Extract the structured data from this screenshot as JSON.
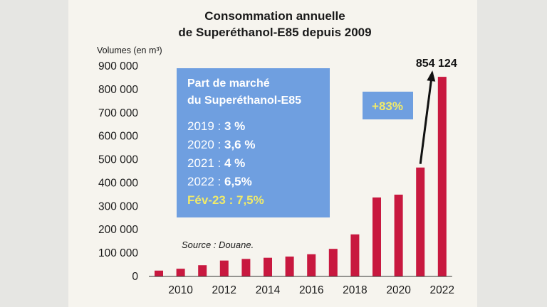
{
  "chart_data": {
    "type": "bar",
    "title": [
      "Consommation annuelle",
      "de Superéthanol-E85 depuis 2009"
    ],
    "ylabel": "Volumes (en m³)",
    "x": [
      2009,
      2010,
      2011,
      2012,
      2013,
      2014,
      2015,
      2016,
      2017,
      2018,
      2019,
      2020,
      2021,
      2022
    ],
    "values": [
      25000,
      33000,
      48000,
      68000,
      75000,
      80000,
      85000,
      95000,
      118000,
      180000,
      338000,
      350000,
      466000,
      854124
    ],
    "xticks": [
      "2010",
      "2012",
      "2014",
      "2016",
      "2018",
      "2020",
      "2022"
    ],
    "yticks": [
      "0",
      "100 000",
      "200 000",
      "300 000",
      "400 000",
      "500 000",
      "600 000",
      "700 000",
      "800 000",
      "900 000"
    ],
    "ylim": [
      0,
      900000
    ],
    "grid": false,
    "bar_color": "#c8183f",
    "last_value_label": "854 124",
    "growth_label": "+83%",
    "source": "Source : Douane.",
    "inset": {
      "title": [
        "Part de marché",
        "du Superéthanol-E85"
      ],
      "rows": [
        {
          "label": "2019 : ",
          "value": "3 %"
        },
        {
          "label": "2020 : ",
          "value": "3,6 %"
        },
        {
          "label": "2021 : ",
          "value": "4 %"
        },
        {
          "label": "2022 : ",
          "value": "6,5%"
        },
        {
          "label": "Fév-23 : ",
          "value": "7,5%"
        }
      ],
      "background": "#6f9fe0",
      "highlight_color": "#f0ea6a"
    }
  }
}
